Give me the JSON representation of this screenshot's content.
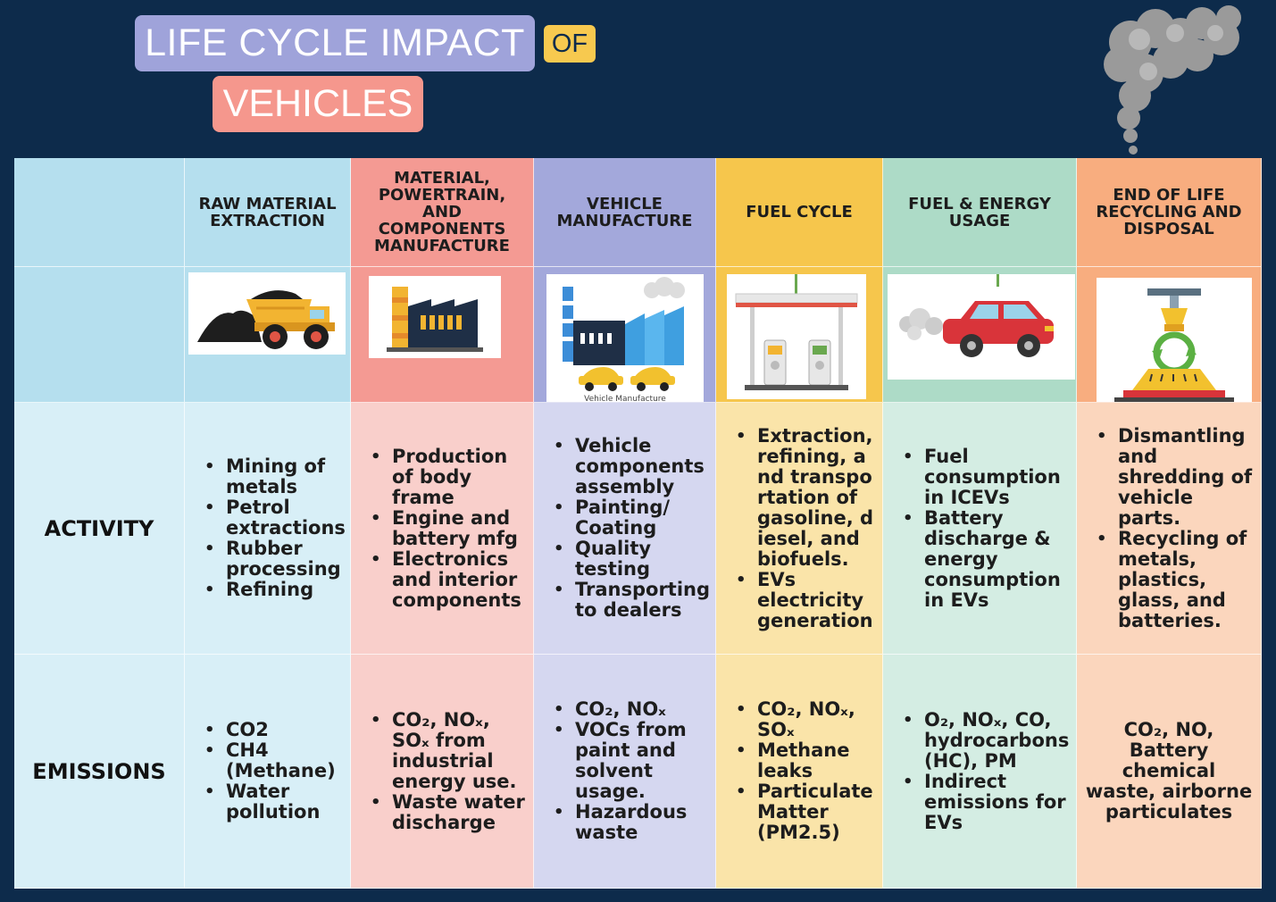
{
  "title": {
    "line1": "LIFE CYCLE IMPACT",
    "of": "OF",
    "line2": "VEHICLES"
  },
  "columns": [
    {
      "header": "RAW MATERIAL EXTRACTION",
      "icon": "mining-truck-icon"
    },
    {
      "header": "MATERIAL, POWERTRAIN, AND COMPONENTS MANUFACTURE",
      "icon": "factory-icon"
    },
    {
      "header": "VEHICLE MANUFACTURE",
      "icon": "vehicle-factory-icon",
      "image_caption": "Vehicle Manufacture"
    },
    {
      "header": "FUEL CYCLE",
      "icon": "fuel-station-icon"
    },
    {
      "header": "FUEL & ENERGY USAGE",
      "icon": "car-exhaust-icon"
    },
    {
      "header": "END OF LIFE RECYCLING AND DISPOSAL",
      "icon": "recycling-press-icon"
    }
  ],
  "rows": {
    "activity": {
      "label": "ACTIVITY",
      "cells": [
        [
          "Mining of metals",
          "Petrol extractions",
          "Rubber processing",
          "Refining"
        ],
        [
          "Production of body frame",
          "Engine and battery mfg",
          "Electronics and interior components"
        ],
        [
          "Vehicle components assembly",
          "Painting/ Coating",
          "Quality testing",
          "Transporting to dealers"
        ],
        [
          "Extraction, refining, and transportation of gasoline, diesel, and biofuels.",
          "EVs electricity generation"
        ],
        [
          "Fuel consumption in ICEVs",
          "Battery discharge & energy consumption in EVs"
        ],
        [
          "Dismantling and shredding of vehicle parts.",
          "Recycling of metals, plastics, glass, and batteries."
        ]
      ]
    },
    "emissions": {
      "label": "EMISSIONS",
      "cells": [
        [
          "CO2",
          "CH4 (Methane)",
          "Water pollution"
        ],
        [
          "CO₂, NOₓ, SOₓ from industrial energy use.",
          "Waste water discharge"
        ],
        [
          "CO₂, NOₓ",
          "VOCs from paint and solvent usage.",
          "Hazardous waste"
        ],
        [
          "CO₂, NOₓ, SOₓ",
          "Methane leaks",
          "Particulate Matter (PM2.5)"
        ],
        [
          "O₂, NOₓ, CO, hydrocarbons (HC), PM",
          "Indirect emissions for EVs"
        ],
        "CO₂, NO, Battery chemical waste, airborne particulates"
      ]
    }
  },
  "colors": {
    "background": "#0d2b4b",
    "raw_material": "#b5dfee",
    "manufacture": "#f49a93",
    "vehicle": "#a3a8db",
    "fuel_cycle": "#f6c64c",
    "usage": "#addbc7",
    "end_of_life": "#f8ad7f"
  }
}
